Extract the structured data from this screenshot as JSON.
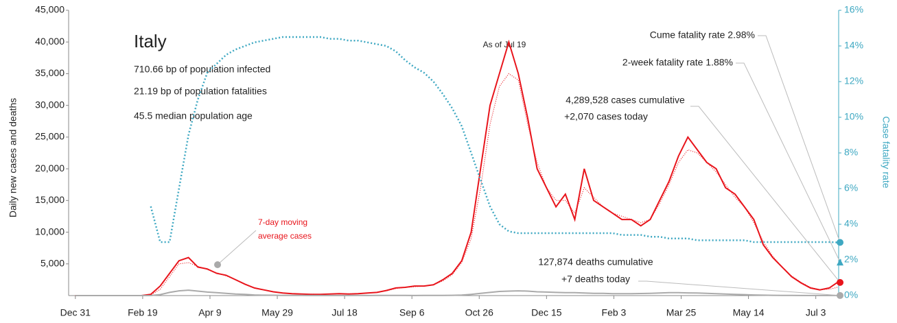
{
  "chart_data": {
    "type": "line",
    "title": "Italy",
    "stats": [
      "710.66 bp of population infected",
      "21.19 bp of population fatalities",
      "45.5 median population age"
    ],
    "as_of": "As of Jul 19",
    "ma_note": [
      "7-day moving",
      "average cases"
    ],
    "ylabel": "Daily new cases and deaths",
    "y2label": "Case fatality rate",
    "callouts": {
      "cume_cfr": "Cume fatality rate 2.98%",
      "two_week_cfr": "2-week fatality rate 1.88%",
      "cases": [
        "4,289,528 cases cumulative",
        "+2,070 cases today"
      ],
      "deaths": [
        "127,874 deaths cumulative",
        "+7 deaths today"
      ]
    },
    "two_week_fatality_rate": 1.88,
    "xlim": [
      -5,
      567
    ],
    "xticks": [
      {
        "value": 0,
        "label": "Dec 31"
      },
      {
        "value": 50,
        "label": "Feb 19"
      },
      {
        "value": 100,
        "label": "Apr 9"
      },
      {
        "value": 150,
        "label": "May 29"
      },
      {
        "value": 200,
        "label": "Jul 18"
      },
      {
        "value": 250,
        "label": "Sep 6"
      },
      {
        "value": 300,
        "label": "Oct 26"
      },
      {
        "value": 350,
        "label": "Dec 15"
      },
      {
        "value": 400,
        "label": "Feb 3"
      },
      {
        "value": 450,
        "label": "Mar 25"
      },
      {
        "value": 500,
        "label": "May 14"
      },
      {
        "value": 550,
        "label": "Jul 3"
      }
    ],
    "ylim": [
      0,
      45000
    ],
    "yticks": [
      {
        "value": 5000,
        "label": "5,000"
      },
      {
        "value": 10000,
        "label": "10,000"
      },
      {
        "value": 15000,
        "label": "15,000"
      },
      {
        "value": 20000,
        "label": "20,000"
      },
      {
        "value": 25000,
        "label": "25,000"
      },
      {
        "value": 30000,
        "label": "30,000"
      },
      {
        "value": 35000,
        "label": "35,000"
      },
      {
        "value": 40000,
        "label": "40,000"
      },
      {
        "value": 45000,
        "label": "45,000"
      }
    ],
    "y2lim": [
      0,
      16
    ],
    "y2ticks": [
      {
        "value": 0,
        "label": "0%"
      },
      {
        "value": 2,
        "label": "2%"
      },
      {
        "value": 4,
        "label": "4%"
      },
      {
        "value": 6,
        "label": "6%"
      },
      {
        "value": 8,
        "label": "8%"
      },
      {
        "value": 10,
        "label": "10%"
      },
      {
        "value": 12,
        "label": "12%"
      },
      {
        "value": 14,
        "label": "14%"
      },
      {
        "value": 16,
        "label": "16%"
      }
    ],
    "x": [
      0,
      7,
      14,
      21,
      28,
      35,
      42,
      49,
      56,
      63,
      70,
      77,
      84,
      91,
      98,
      105,
      112,
      119,
      126,
      133,
      140,
      147,
      154,
      161,
      168,
      175,
      182,
      189,
      196,
      203,
      210,
      217,
      224,
      231,
      238,
      245,
      252,
      259,
      266,
      273,
      280,
      287,
      294,
      301,
      308,
      315,
      322,
      329,
      336,
      343,
      350,
      357,
      364,
      371,
      378,
      385,
      392,
      399,
      406,
      413,
      420,
      427,
      434,
      441,
      448,
      455,
      462,
      469,
      476,
      483,
      490,
      497,
      504,
      511,
      518,
      525,
      532,
      539,
      546,
      553,
      560,
      566
    ],
    "series": [
      {
        "color": "#e8141b",
        "style": "solid",
        "axis": "y",
        "values": [
          0,
          0,
          0,
          0,
          0,
          0,
          0,
          0,
          200,
          1500,
          3500,
          5500,
          6000,
          4500,
          4200,
          3500,
          3200,
          2500,
          1800,
          1200,
          900,
          600,
          400,
          300,
          250,
          200,
          200,
          250,
          300,
          250,
          300,
          400,
          500,
          800,
          1200,
          1300,
          1500,
          1500,
          1700,
          2500,
          3500,
          5500,
          10000,
          20000,
          30000,
          35000,
          40000,
          35000,
          28000,
          20000,
          17000,
          14000,
          16000,
          12000,
          20000,
          15000,
          14000,
          13000,
          12000,
          12000,
          11000,
          12000,
          15000,
          18000,
          22000,
          25000,
          23000,
          21000,
          20000,
          17000,
          16000,
          14000,
          12000,
          8000,
          6000,
          4500,
          3000,
          2000,
          1200,
          900,
          1200,
          2070
        ]
      },
      {
        "color": "#e8141b",
        "style": "dotted",
        "axis": "y",
        "values": [
          0,
          0,
          0,
          0,
          0,
          0,
          0,
          0,
          100,
          1000,
          3000,
          5000,
          5200,
          4600,
          4100,
          3600,
          3100,
          2500,
          1800,
          1200,
          900,
          600,
          400,
          300,
          250,
          220,
          210,
          240,
          270,
          270,
          300,
          380,
          500,
          750,
          1100,
          1300,
          1400,
          1500,
          1700,
          2300,
          3300,
          5200,
          9000,
          17000,
          27000,
          33000,
          35000,
          34000,
          27000,
          21000,
          17000,
          15000,
          15000,
          13000,
          17000,
          15500,
          14000,
          13000,
          12500,
          12000,
          11500,
          12000,
          14500,
          17500,
          21000,
          23000,
          22500,
          21000,
          19500,
          17500,
          15500,
          14000,
          11500,
          8500,
          6200,
          4500,
          3100,
          2100,
          1300,
          950,
          1000,
          1300
        ]
      },
      {
        "color": "#aaaaaa",
        "style": "solid",
        "axis": "y",
        "values": [
          0,
          0,
          0,
          0,
          0,
          0,
          0,
          0,
          10,
          150,
          500,
          750,
          850,
          700,
          550,
          450,
          350,
          250,
          180,
          100,
          70,
          50,
          30,
          20,
          18,
          15,
          15,
          15,
          15,
          15,
          18,
          15,
          20,
          20,
          18,
          20,
          15,
          20,
          20,
          25,
          40,
          80,
          200,
          350,
          500,
          650,
          700,
          750,
          700,
          600,
          550,
          500,
          450,
          450,
          400,
          350,
          350,
          300,
          300,
          300,
          320,
          350,
          400,
          450,
          450,
          420,
          400,
          350,
          300,
          250,
          200,
          150,
          100,
          60,
          40,
          30,
          20,
          15,
          15,
          10,
          10,
          7
        ]
      },
      {
        "color": "#3ea8c2",
        "style": "dotted",
        "axis": "y2",
        "values": [
          null,
          null,
          null,
          null,
          null,
          null,
          null,
          null,
          5,
          3,
          3,
          6,
          9,
          11,
          12.5,
          13,
          13.5,
          13.8,
          14,
          14.2,
          14.3,
          14.4,
          14.5,
          14.5,
          14.5,
          14.5,
          14.5,
          14.4,
          14.4,
          14.3,
          14.3,
          14.2,
          14.1,
          14,
          13.7,
          13.2,
          12.8,
          12.5,
          12,
          11.3,
          10.5,
          9.5,
          8,
          6.5,
          5,
          4,
          3.6,
          3.5,
          3.5,
          3.5,
          3.5,
          3.5,
          3.5,
          3.5,
          3.5,
          3.5,
          3.5,
          3.5,
          3.4,
          3.4,
          3.4,
          3.3,
          3.3,
          3.2,
          3.2,
          3.2,
          3.1,
          3.1,
          3.1,
          3.1,
          3.1,
          3.1,
          3,
          3,
          3,
          3,
          3,
          3,
          3,
          3,
          3,
          2.98
        ]
      }
    ]
  }
}
